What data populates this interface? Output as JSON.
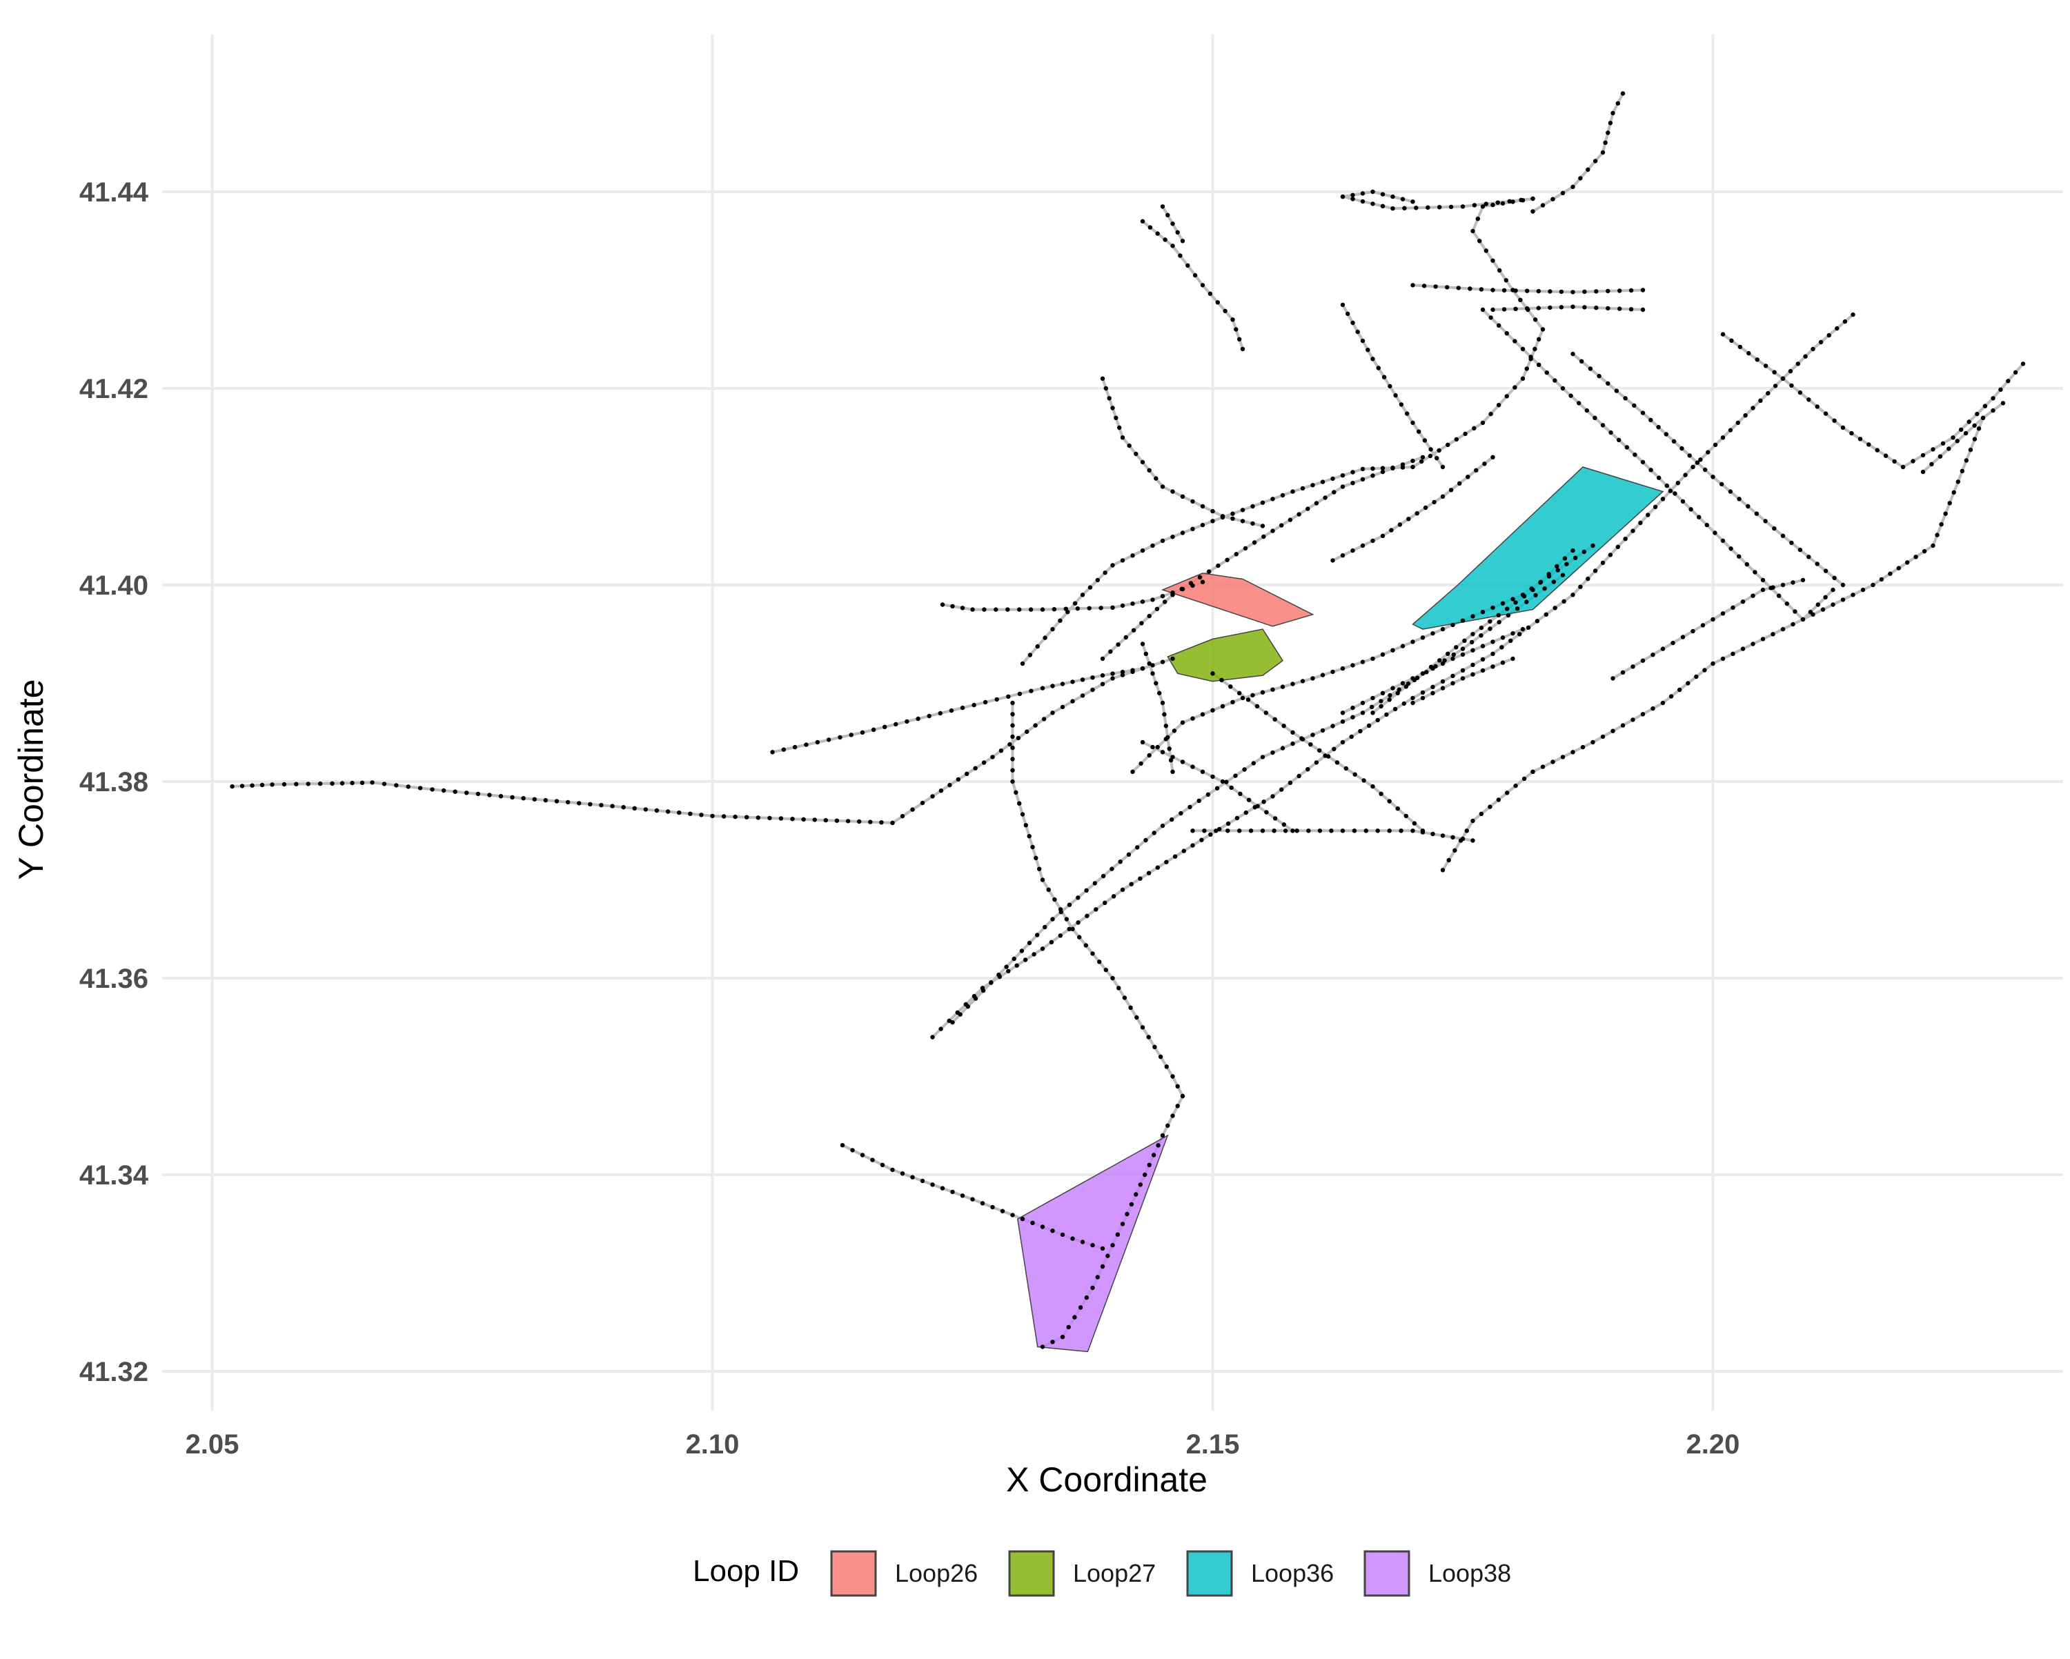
{
  "chart_data": {
    "type": "scatter",
    "xlabel": "X Coordinate",
    "ylabel": "Y Coordinate",
    "xlim": [
      2.045,
      2.235
    ],
    "ylim": [
      41.316,
      41.456
    ],
    "x_ticks": [
      2.05,
      2.1,
      2.15,
      2.2
    ],
    "x_tick_labels": [
      "2.05",
      "2.10",
      "2.15",
      "2.20"
    ],
    "y_ticks": [
      41.32,
      41.34,
      41.36,
      41.38,
      41.4,
      41.42,
      41.44
    ],
    "y_tick_labels": [
      "41.32",
      "41.34",
      "41.36",
      "41.38",
      "41.40",
      "41.42",
      "41.44"
    ],
    "grid": true,
    "legend_placement": "bottom",
    "legend_title": "Loop ID",
    "point_color": "#000000",
    "route_color": "#bdbdbd",
    "loops": [
      {
        "name": "Loop26",
        "color": "#F8766D",
        "polygon": [
          [
            2.145,
            41.3995
          ],
          [
            2.149,
            41.4012
          ],
          [
            2.153,
            41.4006
          ],
          [
            2.16,
            41.397
          ],
          [
            2.156,
            41.3958
          ]
        ]
      },
      {
        "name": "Loop27",
        "color": "#7CAE00",
        "polygon": [
          [
            2.1455,
            41.3927
          ],
          [
            2.1465,
            41.391
          ],
          [
            2.15,
            41.3902
          ],
          [
            2.155,
            41.3908
          ],
          [
            2.157,
            41.3923
          ],
          [
            2.155,
            41.3955
          ],
          [
            2.15,
            41.3945
          ]
        ]
      },
      {
        "name": "Loop36",
        "color": "#00BFC4",
        "polygon": [
          [
            2.17,
            41.396
          ],
          [
            2.1745,
            41.4
          ],
          [
            2.187,
            41.412
          ],
          [
            2.195,
            41.4095
          ],
          [
            2.182,
            41.3975
          ],
          [
            2.171,
            41.3955
          ]
        ]
      },
      {
        "name": "Loop38",
        "color": "#C77CFF",
        "polygon": [
          [
            2.1305,
            41.3355
          ],
          [
            2.1325,
            41.3225
          ],
          [
            2.1375,
            41.322
          ],
          [
            2.1455,
            41.344
          ]
        ]
      }
    ],
    "routes": [
      [
        [
          2.052,
          41.3795
        ],
        [
          2.056,
          41.3797
        ],
        [
          2.062,
          41.3798
        ],
        [
          2.066,
          41.3799
        ],
        [
          2.072,
          41.3792
        ],
        [
          2.08,
          41.3784
        ],
        [
          2.09,
          41.3775
        ],
        [
          2.1,
          41.3765
        ],
        [
          2.108,
          41.3762
        ],
        [
          2.118,
          41.3758
        ]
      ],
      [
        [
          2.118,
          41.3758
        ],
        [
          2.122,
          41.3785
        ],
        [
          2.128,
          41.3825
        ],
        [
          2.134,
          41.387
        ],
        [
          2.14,
          41.3905
        ],
        [
          2.146,
          41.3925
        ]
      ],
      [
        [
          2.106,
          41.383
        ],
        [
          2.115,
          41.385
        ],
        [
          2.125,
          41.3875
        ],
        [
          2.133,
          41.3895
        ],
        [
          2.139,
          41.3908
        ],
        [
          2.143,
          41.3915
        ]
      ],
      [
        [
          2.123,
          41.398
        ],
        [
          2.126,
          41.3975
        ],
        [
          2.133,
          41.3975
        ],
        [
          2.14,
          41.3977
        ],
        [
          2.144,
          41.3985
        ],
        [
          2.149,
          41.4003
        ]
      ],
      [
        [
          2.131,
          41.392
        ],
        [
          2.134,
          41.3955
        ],
        [
          2.137,
          41.399
        ],
        [
          2.14,
          41.402
        ],
        [
          2.145,
          41.4045
        ],
        [
          2.15,
          41.4065
        ],
        [
          2.158,
          41.4095
        ],
        [
          2.165,
          41.4118
        ],
        [
          2.17,
          41.412
        ],
        [
          2.177,
          41.4165
        ],
        [
          2.181,
          41.421
        ],
        [
          2.183,
          41.426
        ],
        [
          2.18,
          41.43
        ],
        [
          2.178,
          41.433
        ],
        [
          2.176,
          41.436
        ],
        [
          2.177,
          41.4385
        ],
        [
          2.182,
          41.4393
        ]
      ],
      [
        [
          2.139,
          41.3925
        ],
        [
          2.146,
          41.399
        ],
        [
          2.156,
          41.4055
        ],
        [
          2.163,
          41.41
        ],
        [
          2.171,
          41.413
        ]
      ],
      [
        [
          2.13,
          41.388
        ],
        [
          2.13,
          41.38
        ],
        [
          2.133,
          41.37
        ],
        [
          2.136,
          41.365
        ],
        [
          2.14,
          41.36
        ],
        [
          2.143,
          41.355
        ],
        [
          2.146,
          41.35
        ],
        [
          2.147,
          41.348
        ]
      ],
      [
        [
          2.122,
          41.354
        ],
        [
          2.127,
          41.359
        ],
        [
          2.133,
          41.363
        ],
        [
          2.141,
          41.369
        ],
        [
          2.148,
          41.3735
        ],
        [
          2.156,
          41.3785
        ],
        [
          2.163,
          41.384
        ],
        [
          2.17,
          41.3885
        ],
        [
          2.178,
          41.393
        ],
        [
          2.186,
          41.399
        ],
        [
          2.192,
          41.4055
        ],
        [
          2.198,
          41.412
        ],
        [
          2.204,
          41.418
        ],
        [
          2.21,
          41.424
        ],
        [
          2.214,
          41.4275
        ]
      ],
      [
        [
          2.124,
          41.3555
        ],
        [
          2.134,
          41.366
        ],
        [
          2.145,
          41.3755
        ],
        [
          2.155,
          41.3825
        ],
        [
          2.165,
          41.387
        ],
        [
          2.175,
          41.3935
        ],
        [
          2.185,
          41.401
        ]
      ],
      [
        [
          2.113,
          41.343
        ],
        [
          2.118,
          41.3405
        ],
        [
          2.126,
          41.3375
        ],
        [
          2.131,
          41.3355
        ],
        [
          2.136,
          41.3335
        ],
        [
          2.139,
          41.3325
        ]
      ],
      [
        [
          2.147,
          41.348
        ],
        [
          2.145,
          41.344
        ],
        [
          2.141,
          41.335
        ],
        [
          2.138,
          41.3285
        ],
        [
          2.135,
          41.3235
        ],
        [
          2.133,
          41.3225
        ]
      ],
      [
        [
          2.142,
          41.381
        ],
        [
          2.147,
          41.386
        ],
        [
          2.153,
          41.3885
        ],
        [
          2.16,
          41.3905
        ],
        [
          2.166,
          41.3925
        ],
        [
          2.173,
          41.3955
        ],
        [
          2.181,
          41.399
        ],
        [
          2.188,
          41.404
        ]
      ],
      [
        [
          2.148,
          41.375
        ],
        [
          2.155,
          41.375
        ],
        [
          2.163,
          41.375
        ],
        [
          2.17,
          41.375
        ],
        [
          2.176,
          41.374
        ]
      ],
      [
        [
          2.143,
          41.384
        ],
        [
          2.151,
          41.38
        ],
        [
          2.158,
          41.375
        ]
      ],
      [
        [
          2.15,
          41.391
        ],
        [
          2.158,
          41.385
        ],
        [
          2.166,
          41.3795
        ],
        [
          2.171,
          41.375
        ]
      ],
      [
        [
          2.162,
          41.4025
        ],
        [
          2.167,
          41.405
        ],
        [
          2.173,
          41.409
        ],
        [
          2.178,
          41.413
        ]
      ],
      [
        [
          2.17,
          41.4305
        ],
        [
          2.178,
          41.43
        ],
        [
          2.186,
          41.4298
        ],
        [
          2.193,
          41.43
        ]
      ],
      [
        [
          2.178,
          41.428
        ],
        [
          2.186,
          41.4283
        ],
        [
          2.193,
          41.428
        ]
      ],
      [
        [
          2.177,
          41.428
        ],
        [
          2.185,
          41.42
        ],
        [
          2.193,
          41.4125
        ],
        [
          2.201,
          41.4045
        ],
        [
          2.209,
          41.3965
        ],
        [
          2.212,
          41.3995
        ]
      ],
      [
        [
          2.186,
          41.4235
        ],
        [
          2.193,
          41.4175
        ],
        [
          2.2,
          41.411
        ],
        [
          2.207,
          41.405
        ],
        [
          2.213,
          41.4
        ]
      ],
      [
        [
          2.182,
          41.438
        ],
        [
          2.186,
          41.4405
        ],
        [
          2.189,
          41.444
        ],
        [
          2.19,
          41.448
        ],
        [
          2.191,
          41.45
        ]
      ],
      [
        [
          2.182,
          41.4393
        ],
        [
          2.175,
          41.4385
        ],
        [
          2.168,
          41.4383
        ],
        [
          2.163,
          41.4395
        ]
      ],
      [
        [
          2.201,
          41.4255
        ],
        [
          2.207,
          41.421
        ],
        [
          2.213,
          41.416
        ],
        [
          2.219,
          41.412
        ],
        [
          2.224,
          41.415
        ],
        [
          2.228,
          41.419
        ],
        [
          2.231,
          41.4225
        ]
      ],
      [
        [
          2.221,
          41.4115
        ],
        [
          2.227,
          41.417
        ],
        [
          2.229,
          41.4185
        ]
      ],
      [
        [
          2.227,
          41.417
        ],
        [
          2.222,
          41.404
        ],
        [
          2.216,
          41.4
        ],
        [
          2.208,
          41.396
        ],
        [
          2.2,
          41.392
        ],
        [
          2.195,
          41.388
        ],
        [
          2.188,
          41.384
        ],
        [
          2.182,
          41.381
        ]
      ],
      [
        [
          2.182,
          41.381
        ],
        [
          2.176,
          41.376
        ],
        [
          2.173,
          41.371
        ]
      ],
      [
        [
          2.17,
          41.388
        ],
        [
          2.175,
          41.3905
        ],
        [
          2.18,
          41.3925
        ]
      ],
      [
        [
          2.163,
          41.4285
        ],
        [
          2.166,
          41.423
        ],
        [
          2.17,
          41.4165
        ],
        [
          2.173,
          41.412
        ]
      ],
      [
        [
          2.139,
          41.421
        ],
        [
          2.141,
          41.415
        ],
        [
          2.145,
          41.41
        ],
        [
          2.151,
          41.407
        ],
        [
          2.155,
          41.406
        ]
      ],
      [
        [
          2.143,
          41.437
        ],
        [
          2.146,
          41.4345
        ],
        [
          2.149,
          41.4305
        ],
        [
          2.152,
          41.427
        ],
        [
          2.153,
          41.424
        ]
      ],
      [
        [
          2.145,
          41.4385
        ],
        [
          2.147,
          41.435
        ]
      ],
      [
        [
          2.163,
          41.4395
        ],
        [
          2.166,
          41.44
        ],
        [
          2.17,
          41.439
        ]
      ],
      [
        [
          2.143,
          41.394
        ],
        [
          2.145,
          41.388
        ],
        [
          2.146,
          41.381
        ]
      ],
      [
        [
          2.19,
          41.3905
        ],
        [
          2.195,
          41.3935
        ],
        [
          2.2,
          41.3965
        ],
        [
          2.205,
          41.3995
        ],
        [
          2.209,
          41.4005
        ]
      ],
      [
        [
          2.163,
          41.387
        ],
        [
          2.168,
          41.3895
        ],
        [
          2.174,
          41.3925
        ],
        [
          2.181,
          41.3955
        ]
      ],
      [
        [
          2.166,
          41.387
        ],
        [
          2.171,
          41.391
        ],
        [
          2.176,
          41.395
        ],
        [
          2.182,
          41.3995
        ],
        [
          2.186,
          41.4035
        ]
      ]
    ]
  }
}
